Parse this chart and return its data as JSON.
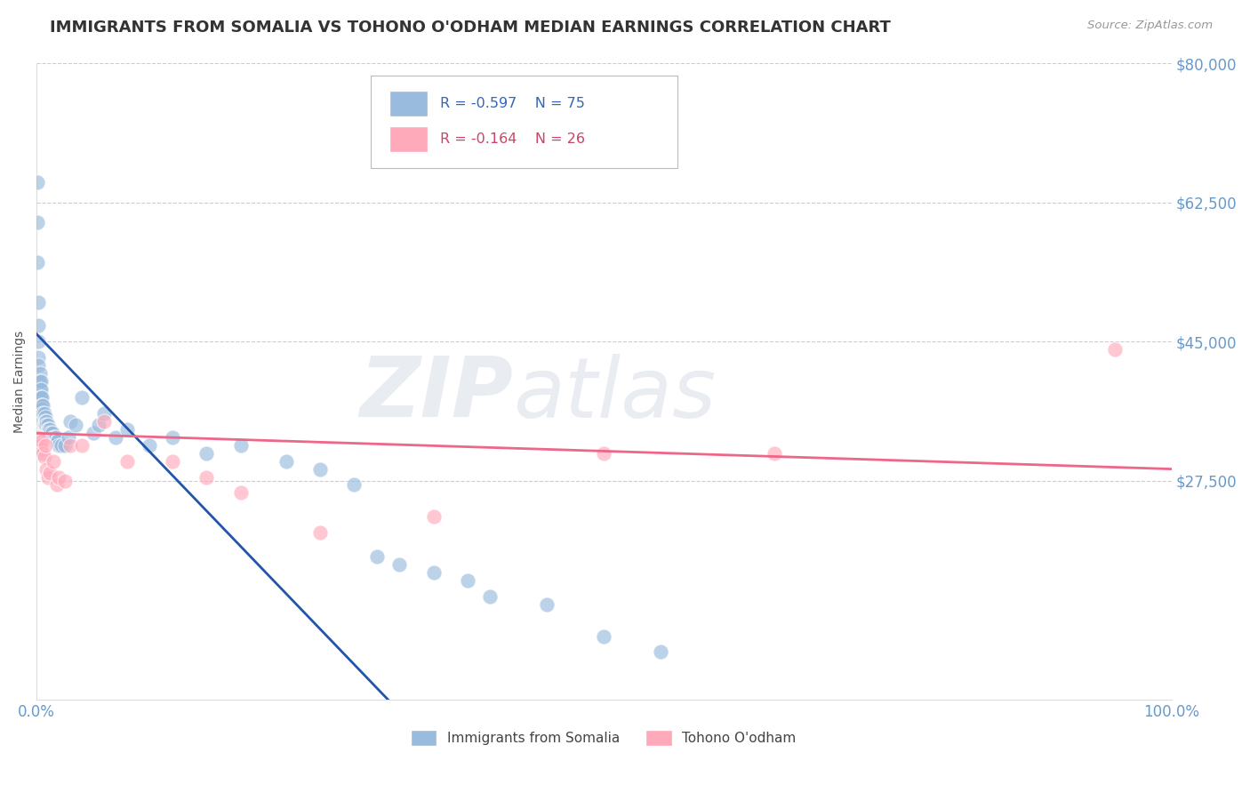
{
  "title": "IMMIGRANTS FROM SOMALIA VS TOHONO O'ODHAM MEDIAN EARNINGS CORRELATION CHART",
  "source": "Source: ZipAtlas.com",
  "ylabel": "Median Earnings",
  "xlim": [
    0,
    1.0
  ],
  "ylim": [
    0,
    80000
  ],
  "xticks": [
    0.0,
    1.0
  ],
  "xticklabels": [
    "0.0%",
    "100.0%"
  ],
  "yticks": [
    27500,
    45000,
    62500,
    80000
  ],
  "yticklabels": [
    "$27,500",
    "$45,000",
    "$62,500",
    "$80,000"
  ],
  "blue_color": "#99BBDD",
  "pink_color": "#FFAABB",
  "blue_line_color": "#2255AA",
  "pink_line_color": "#EE6688",
  "blue_label": "Immigrants from Somalia",
  "pink_label": "Tohono O'odham",
  "legend_blue_r": "R = -0.597",
  "legend_blue_n": "N = 75",
  "legend_pink_r": "R = -0.164",
  "legend_pink_n": "N = 26",
  "blue_scatter_x": [
    0.001,
    0.001,
    0.001,
    0.002,
    0.002,
    0.002,
    0.002,
    0.002,
    0.002,
    0.003,
    0.003,
    0.003,
    0.003,
    0.003,
    0.003,
    0.004,
    0.004,
    0.004,
    0.004,
    0.004,
    0.005,
    0.005,
    0.005,
    0.005,
    0.005,
    0.006,
    0.006,
    0.006,
    0.007,
    0.007,
    0.007,
    0.008,
    0.008,
    0.008,
    0.009,
    0.009,
    0.01,
    0.01,
    0.011,
    0.011,
    0.012,
    0.013,
    0.014,
    0.015,
    0.016,
    0.017,
    0.018,
    0.019,
    0.02,
    0.022,
    0.025,
    0.028,
    0.03,
    0.035,
    0.04,
    0.05,
    0.055,
    0.06,
    0.07,
    0.08,
    0.1,
    0.12,
    0.15,
    0.18,
    0.22,
    0.25,
    0.28,
    0.3,
    0.32,
    0.35,
    0.38,
    0.4,
    0.45,
    0.5,
    0.55
  ],
  "blue_scatter_y": [
    65000,
    60000,
    55000,
    50000,
    47000,
    45000,
    43000,
    42000,
    40000,
    41000,
    40000,
    39000,
    38000,
    37500,
    37000,
    40000,
    39000,
    38000,
    37000,
    36500,
    38000,
    37000,
    36500,
    36000,
    35500,
    37000,
    36000,
    35000,
    36000,
    35000,
    34500,
    35500,
    35000,
    34500,
    35000,
    34500,
    34500,
    34000,
    34000,
    33500,
    34000,
    33500,
    33500,
    33000,
    33000,
    33000,
    32500,
    32500,
    32000,
    32000,
    32000,
    33000,
    35000,
    34500,
    38000,
    33500,
    34500,
    36000,
    33000,
    34000,
    32000,
    33000,
    31000,
    32000,
    30000,
    29000,
    27000,
    18000,
    17000,
    16000,
    15000,
    13000,
    12000,
    8000,
    6000
  ],
  "pink_scatter_x": [
    0.002,
    0.003,
    0.004,
    0.005,
    0.006,
    0.007,
    0.008,
    0.009,
    0.01,
    0.012,
    0.015,
    0.018,
    0.02,
    0.025,
    0.03,
    0.04,
    0.06,
    0.08,
    0.12,
    0.15,
    0.18,
    0.25,
    0.35,
    0.5,
    0.65,
    0.95
  ],
  "pink_scatter_y": [
    33000,
    32000,
    31500,
    32500,
    31000,
    30500,
    32000,
    29000,
    28000,
    28500,
    30000,
    27000,
    28000,
    27500,
    32000,
    32000,
    35000,
    30000,
    30000,
    28000,
    26000,
    21000,
    23000,
    31000,
    31000,
    44000
  ],
  "blue_trendline_x": [
    0.0,
    0.31
  ],
  "blue_trendline_y": [
    46000,
    0
  ],
  "pink_trendline_x": [
    0.0,
    1.0
  ],
  "pink_trendline_y": [
    33500,
    29000
  ],
  "watermark_zip": "ZIP",
  "watermark_atlas": "atlas",
  "grid_color": "#CCCCCC",
  "title_color": "#333333",
  "axis_label_color": "#6699CC",
  "background_color": "#FFFFFF"
}
